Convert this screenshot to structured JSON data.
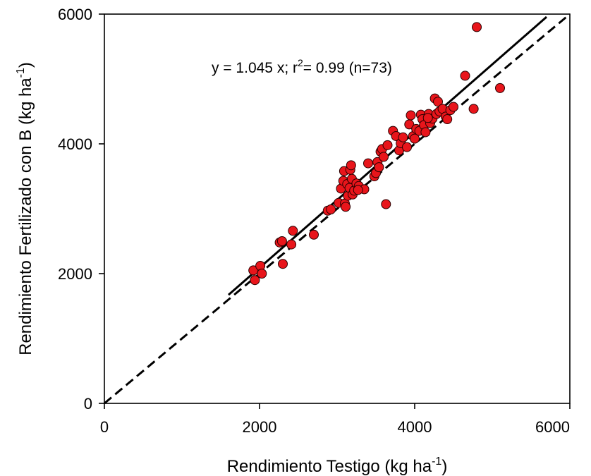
{
  "chart_data": {
    "type": "scatter",
    "xlabel": "Rendimiento Testigo (kg ha",
    "xlabel_sup": "-1",
    "xlabel_end": ")",
    "ylabel": "Rendimiento Fertilizado con B (kg ha",
    "ylabel_sup": "-1",
    "ylabel_end": ")",
    "xlim": [
      0,
      6000
    ],
    "ylim": [
      0,
      6000
    ],
    "x_ticks": [
      0,
      2000,
      4000,
      6000
    ],
    "y_ticks": [
      0,
      2000,
      4000,
      6000
    ],
    "x_tick_labels": [
      "0",
      "2000",
      "4000",
      "6000"
    ],
    "y_tick_labels": [
      "0",
      "2000",
      "4000",
      "6000"
    ],
    "grid": false,
    "annotation": {
      "part1": "y = 1.045 x; r",
      "sup": "2",
      "part2": "= 0.99 (n=73)"
    },
    "marker_color": "#e8151b",
    "fit_line": {
      "style": "solid",
      "slope": 1.045,
      "x_range": [
        1600,
        5700
      ]
    },
    "reference_line": {
      "style": "dashed",
      "slope": 1.0,
      "x_range": [
        0,
        6000
      ]
    },
    "points": [
      [
        1920,
        2050
      ],
      [
        1940,
        1900
      ],
      [
        2010,
        2120
      ],
      [
        2030,
        2000
      ],
      [
        2260,
        2480
      ],
      [
        2290,
        2500
      ],
      [
        2300,
        2150
      ],
      [
        2410,
        2450
      ],
      [
        2430,
        2660
      ],
      [
        2700,
        2600
      ],
      [
        2880,
        2970
      ],
      [
        2920,
        2990
      ],
      [
        3020,
        3090
      ],
      [
        3050,
        3310
      ],
      [
        3080,
        3430
      ],
      [
        3090,
        3580
      ],
      [
        3100,
        3080
      ],
      [
        3110,
        3030
      ],
      [
        3130,
        3380
      ],
      [
        3140,
        3200
      ],
      [
        3160,
        3320
      ],
      [
        3170,
        3600
      ],
      [
        3180,
        3670
      ],
      [
        3190,
        3460
      ],
      [
        3200,
        3220
      ],
      [
        3220,
        3280
      ],
      [
        3250,
        3390
      ],
      [
        3280,
        3350
      ],
      [
        3350,
        3300
      ],
      [
        3400,
        3700
      ],
      [
        3480,
        3500
      ],
      [
        3500,
        3550
      ],
      [
        3520,
        3720
      ],
      [
        3560,
        3880
      ],
      [
        3580,
        3920
      ],
      [
        3600,
        3800
      ],
      [
        3630,
        3070
      ],
      [
        3720,
        4200
      ],
      [
        3760,
        4120
      ],
      [
        3800,
        3900
      ],
      [
        3820,
        4010
      ],
      [
        3850,
        4100
      ],
      [
        3900,
        3950
      ],
      [
        3930,
        4300
      ],
      [
        3950,
        4440
      ],
      [
        3980,
        4120
      ],
      [
        4000,
        4080
      ],
      [
        4020,
        4230
      ],
      [
        4060,
        4200
      ],
      [
        4080,
        4450
      ],
      [
        4100,
        4380
      ],
      [
        4120,
        4290
      ],
      [
        4140,
        4180
      ],
      [
        4180,
        4460
      ],
      [
        4200,
        4320
      ],
      [
        4230,
        4390
      ],
      [
        4260,
        4700
      ],
      [
        4280,
        4460
      ],
      [
        4300,
        4650
      ],
      [
        4320,
        4500
      ],
      [
        4360,
        4540
      ],
      [
        4400,
        4420
      ],
      [
        4420,
        4380
      ],
      [
        4460,
        4520
      ],
      [
        4500,
        4570
      ],
      [
        4650,
        5050
      ],
      [
        4760,
        4540
      ],
      [
        4800,
        5800
      ],
      [
        5100,
        4860
      ],
      [
        3540,
        3640
      ],
      [
        3650,
        3980
      ],
      [
        4170,
        4400
      ],
      [
        3270,
        3290
      ]
    ]
  }
}
